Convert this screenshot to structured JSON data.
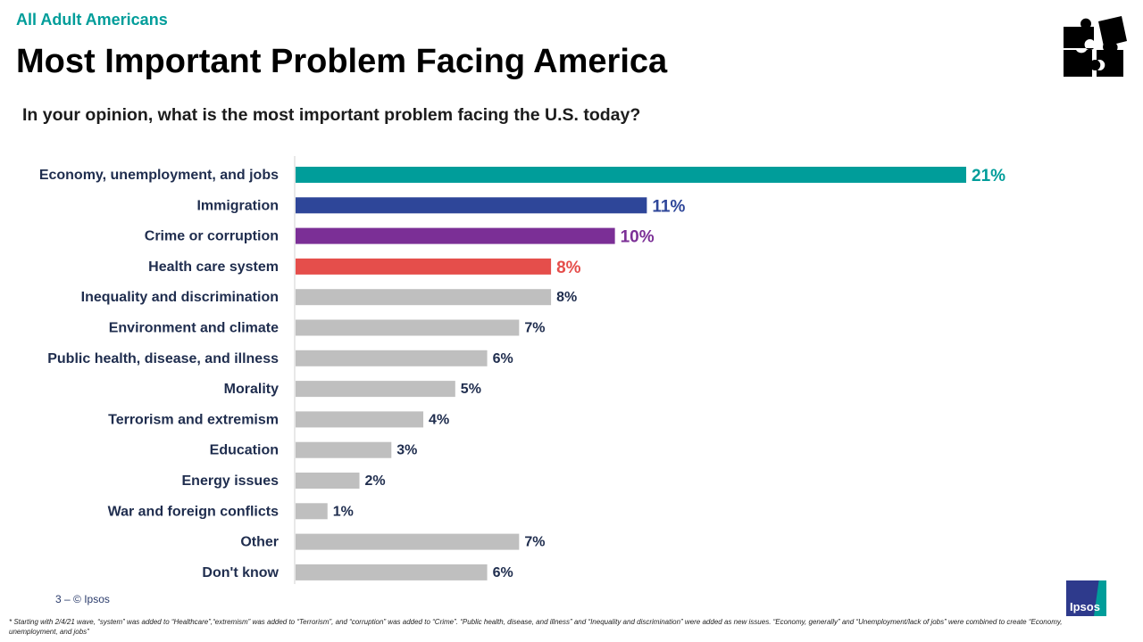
{
  "header": {
    "subhead": "All Adult Americans",
    "title": "Most Important Problem Facing America",
    "question": "In your opinion, what is the most important problem facing the U.S. today?"
  },
  "chart_data": {
    "type": "bar",
    "orientation": "horizontal",
    "categories": [
      "Economy, unemployment, and jobs",
      "Immigration",
      "Crime or corruption",
      "Health care system",
      "Inequality and discrimination",
      "Environment and climate",
      "Public health, disease, and illness",
      "Morality",
      "Terrorism and extremism",
      "Education",
      "Energy issues",
      "War and foreign conflicts",
      "Other",
      "Don't know"
    ],
    "values": [
      21,
      11,
      10,
      8,
      8,
      7,
      6,
      5,
      4,
      3,
      2,
      1,
      7,
      6
    ],
    "labels": [
      "21%",
      "11%",
      "10%",
      "8%",
      "8%",
      "7%",
      "6%",
      "5%",
      "4%",
      "3%",
      "2%",
      "1%",
      "7%",
      "6%"
    ],
    "colors": [
      "#009d9a",
      "#2e4699",
      "#7b2f96",
      "#e54e4b",
      "#bfbfbf",
      "#bfbfbf",
      "#bfbfbf",
      "#bfbfbf",
      "#bfbfbf",
      "#bfbfbf",
      "#bfbfbf",
      "#bfbfbf",
      "#bfbfbf",
      "#bfbfbf"
    ],
    "label_colors": [
      "#009d9a",
      "#2e4699",
      "#7b2f96",
      "#e54e4b",
      "#1f2d4e",
      "#1f2d4e",
      "#1f2d4e",
      "#1f2d4e",
      "#1f2d4e",
      "#1f2d4e",
      "#1f2d4e",
      "#1f2d4e",
      "#1f2d4e",
      "#1f2d4e"
    ],
    "xlim": [
      0,
      21.5
    ],
    "grid": false
  },
  "footer": {
    "page": "3 –  © Ipsos",
    "footnote": "* Starting with 2/4/21 wave, “system” was added to “Healthcare”,“extremism” was added to “Terrorism”, and “corruption” was added to “Crime”. “Public health, disease, and illness” and “Inequality and discrimination” were added as new issues. “Economy, generally” and “Unemployment/lack of jobs” were combined to create “Economy, unemployment, and jobs”",
    "logo": "Ipsos"
  }
}
